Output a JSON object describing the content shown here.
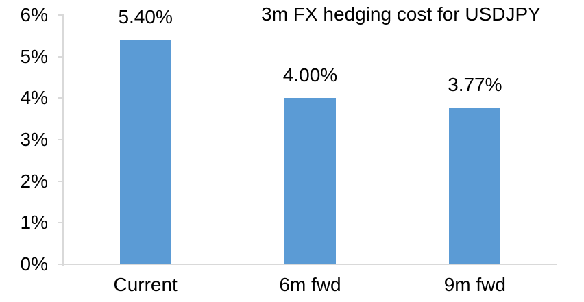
{
  "chart_data": {
    "type": "bar",
    "title": "3m FX hedging cost for USDJPY",
    "categories": [
      "Current",
      "6m fwd",
      "9m fwd"
    ],
    "values": [
      5.4,
      4.0,
      3.77
    ],
    "data_labels": [
      "5.40%",
      "4.00%",
      "3.77%"
    ],
    "y_ticks": [
      "0%",
      "1%",
      "2%",
      "3%",
      "4%",
      "5%",
      "6%"
    ],
    "ylim": [
      0,
      6
    ],
    "grid": false,
    "legend": "none",
    "bar_color": "#5B9BD5",
    "axis_color": "#D9D9D9",
    "text_color": "#000000",
    "background_color": "#FFFFFF"
  }
}
